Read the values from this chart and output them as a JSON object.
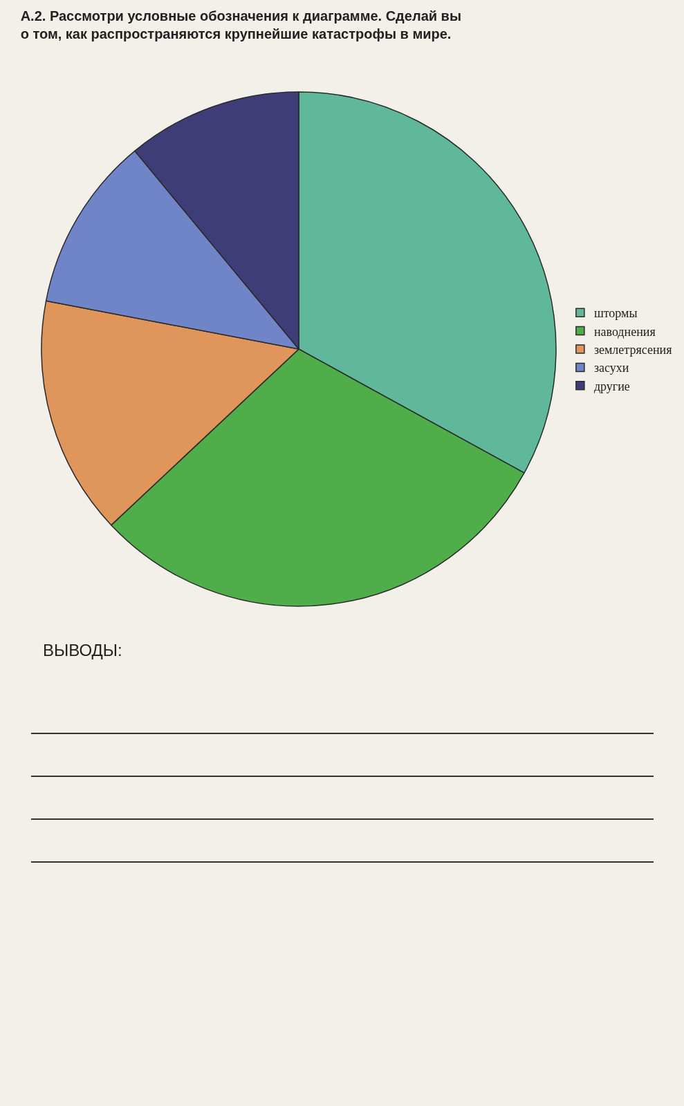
{
  "chart_data": {
    "type": "pie",
    "title": "А.2. Рассмотри условные обозначения к диаграмме. Сделай вы\nо том, как распространяются крупнейшие катастрофы в мире.",
    "categories": [
      "штормы",
      "наводнения",
      "землетрясения",
      "засухи",
      "другие"
    ],
    "values": [
      33,
      30,
      15,
      11,
      11
    ],
    "colors": [
      "#5fb89a",
      "#4fae4a",
      "#e0955a",
      "#6f85c8",
      "#3f3d78"
    ],
    "legend": "right",
    "annotations": [
      "ВЫВОДЫ:"
    ]
  }
}
